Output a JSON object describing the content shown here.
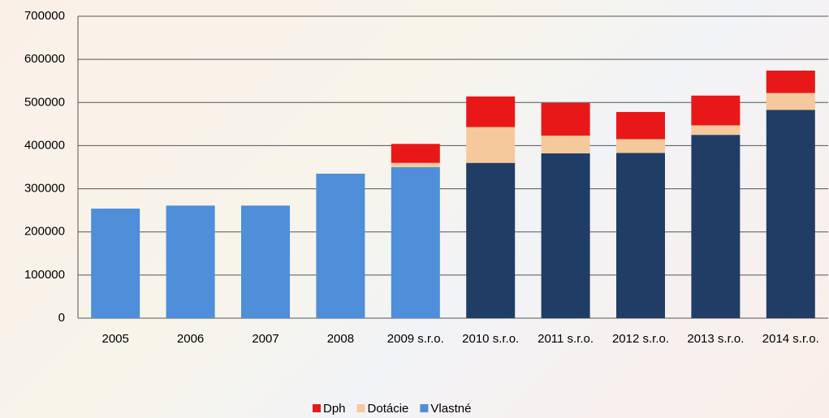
{
  "chart_data": {
    "type": "stacked-bar",
    "categories": [
      "2005",
      "2006",
      "2007",
      "2008",
      "2009 s.r.o.",
      "2010 s.r.o.",
      "2011 s.r.o.",
      "2012 s.r.o.",
      "2013 s.r.o.",
      "2014 s.r.o."
    ],
    "series": [
      {
        "name": "Vlastné",
        "color": "#4f8ed8",
        "point_colors": [
          "#4f8ed8",
          "#4f8ed8",
          "#4f8ed8",
          "#4f8ed8",
          "#4f8ed8",
          "#203d66",
          "#203d66",
          "#203d66",
          "#203d66",
          "#203d66"
        ],
        "values": [
          254000,
          261000,
          261000,
          335000,
          350000,
          360000,
          382000,
          383000,
          425000,
          483000
        ]
      },
      {
        "name": "Dotácie",
        "color": "#f5c99b",
        "values": [
          0,
          0,
          0,
          0,
          10000,
          83000,
          41000,
          32000,
          22000,
          39000
        ]
      },
      {
        "name": "Dph",
        "color": "#e81818",
        "values": [
          0,
          0,
          0,
          0,
          44000,
          71000,
          76000,
          63000,
          69000,
          52000
        ]
      }
    ],
    "ylim": [
      0,
      700000
    ],
    "yticks": [
      0,
      100000,
      200000,
      300000,
      400000,
      500000,
      600000,
      700000
    ],
    "grid": true,
    "legend": "bottom"
  }
}
